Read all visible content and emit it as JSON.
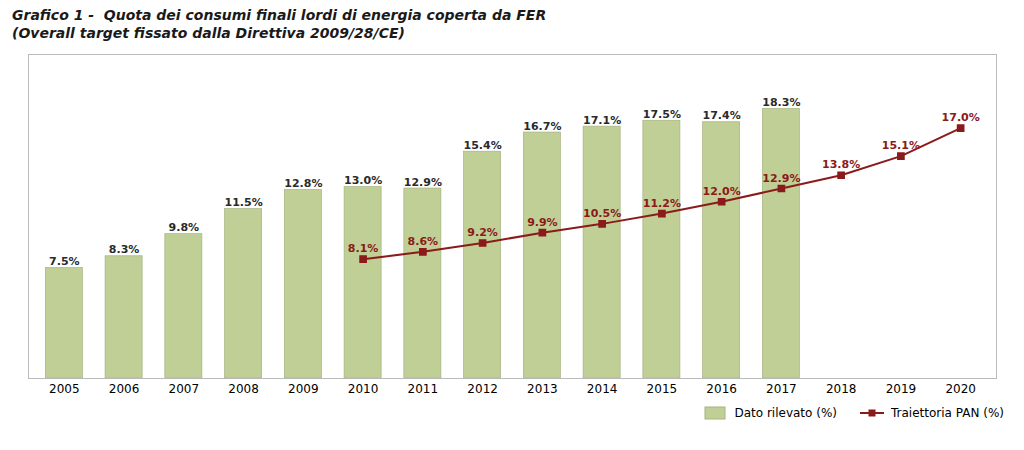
{
  "chart_data": {
    "type": "bar",
    "title": "Grafico 1 -  Quota dei consumi finali lordi di energia coperta da FER",
    "subtitle": "(Overall target fissato dalla Direttiva 2009/28/CE)",
    "categories": [
      "2005",
      "2006",
      "2007",
      "2008",
      "2009",
      "2010",
      "2011",
      "2012",
      "2013",
      "2014",
      "2015",
      "2016",
      "2017",
      "2018",
      "2019",
      "2020"
    ],
    "series": [
      {
        "name": "Dato rilevato (%)",
        "type": "bar",
        "color": "#bfcf96",
        "values": [
          7.5,
          8.3,
          9.8,
          11.5,
          12.8,
          13.0,
          12.9,
          15.4,
          16.7,
          17.1,
          17.5,
          17.4,
          18.3,
          null,
          null,
          null
        ],
        "value_labels": [
          "7.5%",
          "8.3%",
          "9.8%",
          "11.5%",
          "12.8%",
          "13.0%",
          "12.9%",
          "15.4%",
          "16.7%",
          "17.1%",
          "17.5%",
          "17.4%",
          "18.3%",
          null,
          null,
          null
        ]
      },
      {
        "name": "Traiettoria PAN (%)",
        "type": "line",
        "color": "#8b1a1a",
        "marker": "square",
        "values": [
          null,
          null,
          null,
          null,
          null,
          8.1,
          8.6,
          9.2,
          9.9,
          10.5,
          11.2,
          12.0,
          12.9,
          13.8,
          15.1,
          17.0
        ],
        "value_labels": [
          null,
          null,
          null,
          null,
          null,
          "8.1%",
          "8.6%",
          "9.2%",
          "9.9%",
          "10.5%",
          "11.2%",
          "12.0%",
          "12.9%",
          "13.8%",
          "15.1%",
          "17.0%"
        ]
      }
    ],
    "ylim": [
      0,
      22
    ],
    "grid": false,
    "legend": "lower right",
    "data_labels": true,
    "tick_labels": "x"
  }
}
